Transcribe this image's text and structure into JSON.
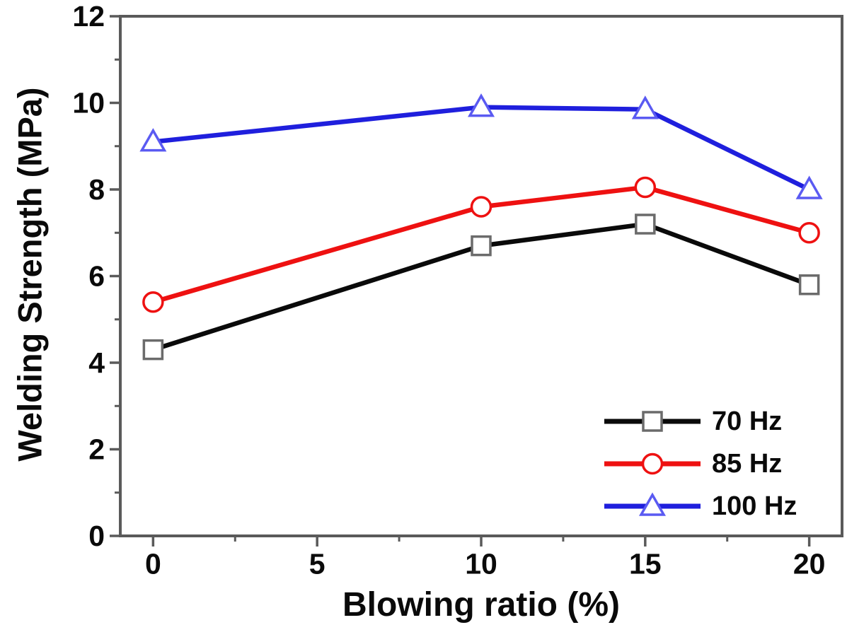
{
  "figure": {
    "background": "#ffffff",
    "frame_color": "#5a5a5a",
    "tick_color": "#5a5a5a",
    "tick_label_color": "#0a0a0a"
  },
  "axes": {
    "x_title": "Blowing ratio (%)",
    "y_title": "Welding Strength (MPa)"
  },
  "chart_data": {
    "type": "line",
    "x": [
      0,
      10,
      15,
      20
    ],
    "series": [
      {
        "name": "70 Hz",
        "marker": "square",
        "color": "#0a0a0a",
        "marker_stroke": "#6b6b6b",
        "values": [
          4.3,
          6.7,
          7.2,
          5.8
        ]
      },
      {
        "name": "85 Hz",
        "marker": "circle",
        "color": "#ee1111",
        "marker_stroke": "#ee1111",
        "values": [
          5.4,
          7.6,
          8.05,
          7.0
        ]
      },
      {
        "name": "100 Hz",
        "marker": "triangle",
        "color": "#1f1fdd",
        "marker_stroke": "#5a5af2",
        "values": [
          9.1,
          9.9,
          9.85,
          8.0
        ]
      }
    ],
    "title": "",
    "xlabel": "Blowing ratio (%)",
    "ylabel": "Welding Strength (MPa)",
    "xlim": [
      -1,
      21
    ],
    "ylim": [
      0,
      12
    ],
    "x_major_ticks": [
      0,
      5,
      10,
      15,
      20
    ],
    "x_minor_ticks": [
      2.5,
      7.5,
      12.5,
      17.5
    ],
    "y_major_ticks": [
      0,
      2,
      4,
      6,
      8,
      10,
      12
    ],
    "y_minor_ticks": [
      1,
      3,
      5,
      7,
      9,
      11
    ],
    "grid": false,
    "legend_position": "lower right"
  }
}
